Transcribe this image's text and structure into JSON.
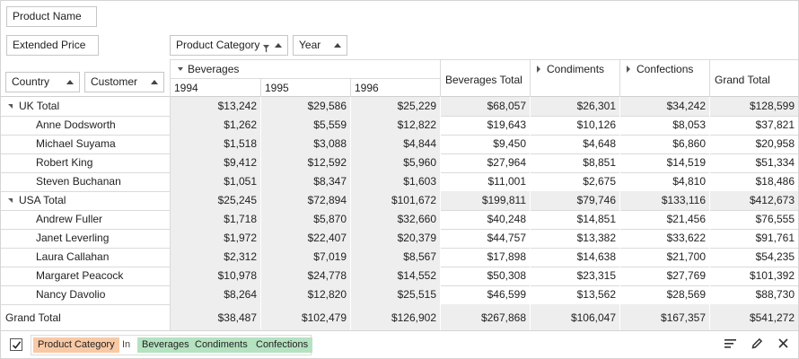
{
  "colors": {
    "total_background": "#eeeeee",
    "filter_field_chip": "#f8c9a5",
    "filter_value_chip": "#b5e2c0"
  },
  "filter_area": {
    "field": "Product Name"
  },
  "data_area": {
    "field": "Extended Price"
  },
  "column_area": {
    "fields": [
      "Product Category",
      "Year"
    ]
  },
  "row_area": {
    "fields": [
      "Country",
      "Customer"
    ]
  },
  "column_headers": {
    "beverages": "Beverages",
    "years": [
      "1994",
      "1995",
      "1996"
    ],
    "beverages_total": "Beverages Total",
    "condiments": "Condiments",
    "confections": "Confections",
    "grand_total": "Grand Total"
  },
  "rows": [
    {
      "label": "UK Total",
      "type": "group-total",
      "values": [
        "$13,242",
        "$29,586",
        "$25,229",
        "$68,057",
        "$26,301",
        "$34,242",
        "$128,599"
      ]
    },
    {
      "label": "Anne Dodsworth",
      "type": "item",
      "values": [
        "$1,262",
        "$5,559",
        "$12,822",
        "$19,643",
        "$10,126",
        "$8,053",
        "$37,821"
      ]
    },
    {
      "label": "Michael Suyama",
      "type": "item",
      "values": [
        "$1,518",
        "$3,088",
        "$4,844",
        "$9,450",
        "$4,648",
        "$6,860",
        "$20,958"
      ]
    },
    {
      "label": "Robert King",
      "type": "item",
      "values": [
        "$9,412",
        "$12,592",
        "$5,960",
        "$27,964",
        "$8,851",
        "$14,519",
        "$51,334"
      ]
    },
    {
      "label": "Steven Buchanan",
      "type": "item",
      "values": [
        "$1,051",
        "$8,347",
        "$1,603",
        "$11,001",
        "$2,675",
        "$4,810",
        "$18,486"
      ]
    },
    {
      "label": "USA Total",
      "type": "group-total",
      "values": [
        "$25,245",
        "$72,894",
        "$101,672",
        "$199,811",
        "$79,746",
        "$133,116",
        "$412,673"
      ]
    },
    {
      "label": "Andrew Fuller",
      "type": "item",
      "values": [
        "$1,718",
        "$5,870",
        "$32,660",
        "$40,248",
        "$14,851",
        "$21,456",
        "$76,555"
      ]
    },
    {
      "label": "Janet Leverling",
      "type": "item",
      "values": [
        "$1,972",
        "$22,407",
        "$20,379",
        "$44,757",
        "$13,382",
        "$33,622",
        "$91,761"
      ]
    },
    {
      "label": "Laura Callahan",
      "type": "item",
      "values": [
        "$2,312",
        "$7,019",
        "$8,567",
        "$17,898",
        "$14,638",
        "$21,700",
        "$54,235"
      ]
    },
    {
      "label": "Margaret Peacock",
      "type": "item",
      "values": [
        "$10,978",
        "$24,778",
        "$14,552",
        "$50,308",
        "$23,315",
        "$27,769",
        "$101,392"
      ]
    },
    {
      "label": "Nancy Davolio",
      "type": "item",
      "values": [
        "$8,264",
        "$12,820",
        "$25,515",
        "$46,599",
        "$13,562",
        "$28,569",
        "$88,730"
      ]
    }
  ],
  "grand_total_row": {
    "label": "Grand Total",
    "values": [
      "$38,487",
      "$102,479",
      "$126,902",
      "$267,868",
      "$106,047",
      "$167,357",
      "$541,272"
    ]
  },
  "filter_panel": {
    "enabled": true,
    "field": "Product Category",
    "operator": "In",
    "values": [
      "Beverages",
      "Condiments",
      "Confections"
    ],
    "icons": [
      "filter-panel-checkbox",
      "prefilter-list-icon",
      "edit-pencil-icon",
      "close-x-icon"
    ]
  }
}
